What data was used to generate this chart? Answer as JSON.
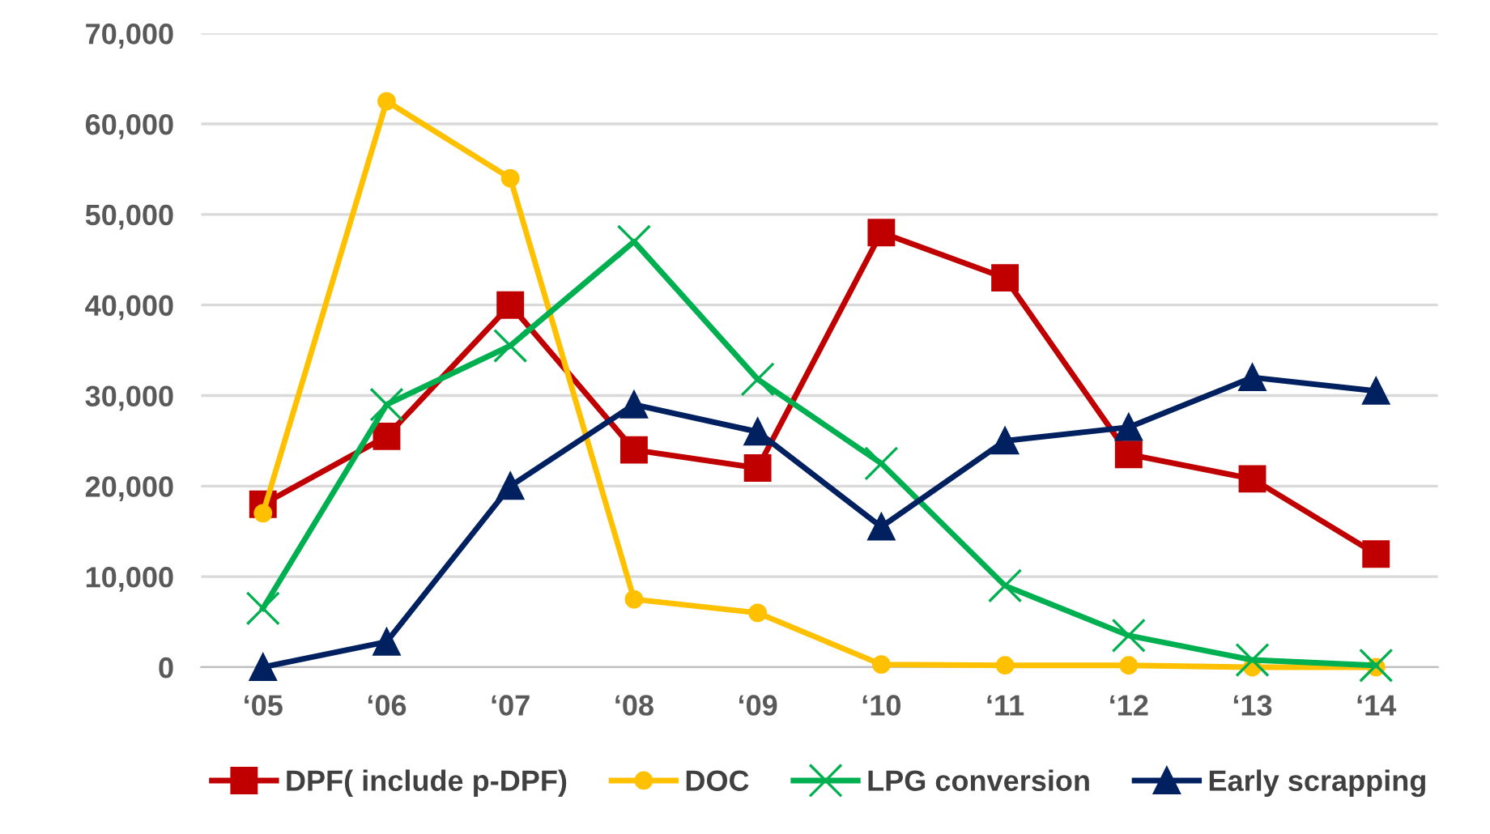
{
  "chart_data": {
    "type": "line",
    "categories": [
      "‘05",
      "‘06",
      "‘07",
      "‘08",
      "‘09",
      "‘10",
      "‘11",
      "‘12",
      "‘13",
      "‘14"
    ],
    "series": [
      {
        "name": "DPF( include p-DPF)",
        "color": "#c00000",
        "marker": "square",
        "values": [
          18000,
          25500,
          40000,
          24000,
          22000,
          48000,
          43000,
          23500,
          20800,
          12500
        ]
      },
      {
        "name": "DOC",
        "color": "#ffc000",
        "marker": "circle",
        "values": [
          17000,
          62500,
          54000,
          7500,
          6000,
          300,
          200,
          200,
          0,
          0
        ]
      },
      {
        "name": "LPG conversion",
        "color": "#00b050",
        "marker": "cross",
        "values": [
          6500,
          29000,
          35500,
          47000,
          31800,
          22500,
          9000,
          3500,
          800,
          200
        ]
      },
      {
        "name": "Early scrapping",
        "color": "#002060",
        "marker": "triangle",
        "values": [
          0,
          2800,
          20000,
          29000,
          26000,
          15500,
          25000,
          26500,
          32000,
          30500
        ]
      }
    ],
    "ylim": [
      0,
      70000
    ],
    "yticks": [
      {
        "value": 0,
        "label": "0"
      },
      {
        "value": 10000,
        "label": "10,000"
      },
      {
        "value": 20000,
        "label": "20,000"
      },
      {
        "value": 30000,
        "label": "30,000"
      },
      {
        "value": 40000,
        "label": "40,000"
      },
      {
        "value": 50000,
        "label": "50,000"
      },
      {
        "value": 60000,
        "label": "60,000"
      },
      {
        "value": 70000,
        "label": "70,000"
      }
    ],
    "grid": "y",
    "legend": "bottom",
    "line_style": "solid"
  }
}
